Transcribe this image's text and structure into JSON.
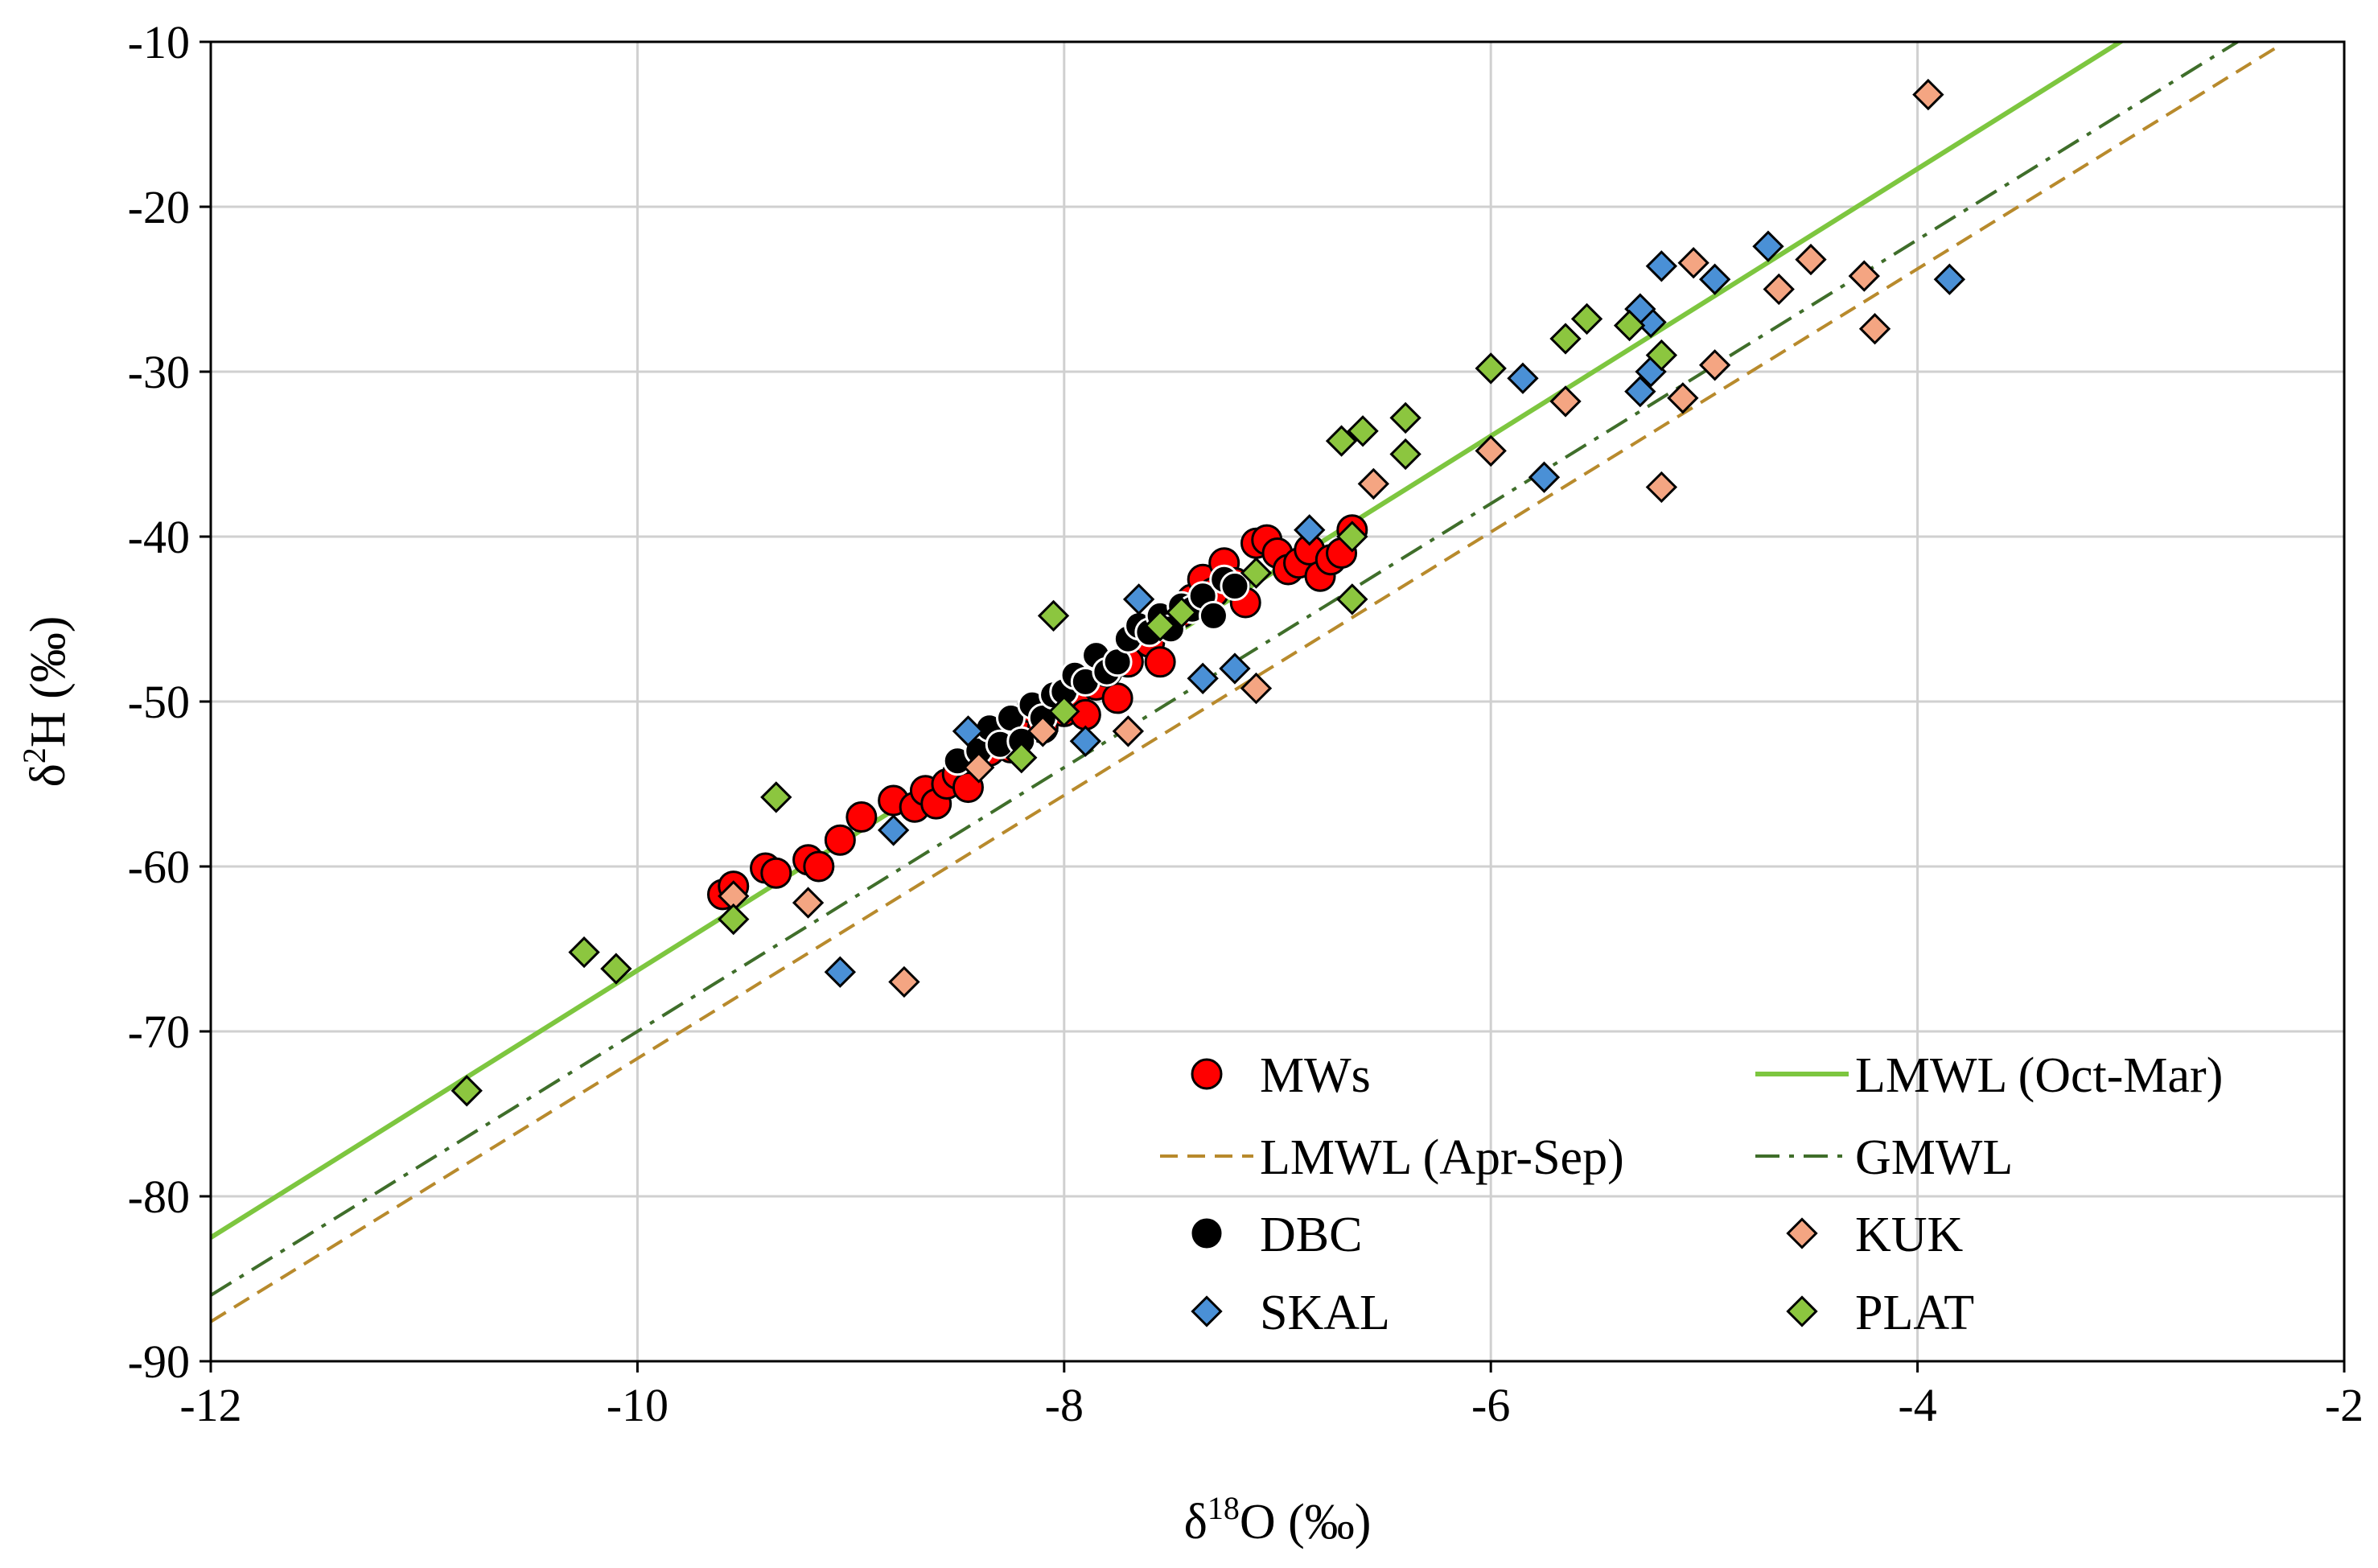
{
  "chart_data": {
    "type": "scatter",
    "xlabel": "δ18O (‰)",
    "xlabel_parts": {
      "pre": "δ",
      "sup": "18",
      "post": "O (‰)"
    },
    "ylabel": "δ2H (‰)",
    "ylabel_parts": {
      "pre": "δ",
      "sup": "2",
      "post": "H (‰)"
    },
    "xlim": [
      -12,
      -2
    ],
    "ylim": [
      -90,
      -10
    ],
    "x_ticks": [
      -12,
      -10,
      -8,
      -6,
      -4,
      -2
    ],
    "y_ticks": [
      -90,
      -80,
      -70,
      -60,
      -50,
      -40,
      -30,
      -20,
      -10
    ],
    "x_tick_labels": [
      "-12",
      "-10",
      "-8",
      "-6",
      "-4",
      "-2"
    ],
    "y_tick_labels": [
      "-90",
      "-80",
      "-70",
      "-60",
      "-50",
      "-40",
      "-30",
      "-20",
      "-10"
    ],
    "grid": true,
    "legend_position": "bottom-right",
    "legend": [
      {
        "label": "MWs",
        "key": "MWs"
      },
      {
        "label": "LMWL (Oct-Mar)",
        "key": "lmwl_oct_mar"
      },
      {
        "label": "LMWL (Apr-Sep)",
        "key": "lmwl_apr_sep"
      },
      {
        "label": "GMWL",
        "key": "gmwl"
      },
      {
        "label": "DBC",
        "key": "DBC"
      },
      {
        "label": "KUK",
        "key": "KUK"
      },
      {
        "label": "SKAL",
        "key": "SKAL"
      },
      {
        "label": "PLAT",
        "key": "PLAT"
      }
    ],
    "lines": [
      {
        "key": "lmwl_oct_mar",
        "name": "LMWL (Oct-Mar)",
        "color": "#7dc63f",
        "style": "solid",
        "points": [
          [
            -12,
            -82.5
          ],
          [
            -3,
            -9.6
          ]
        ]
      },
      {
        "key": "lmwl_apr_sep",
        "name": "LMWL (Apr-Sep)",
        "color": "#b88a2c",
        "style": "dash",
        "points": [
          [
            -12,
            -87.6
          ],
          [
            -2.3,
            -10.2
          ]
        ]
      },
      {
        "key": "gmwl",
        "name": "GMWL",
        "color": "#3f6e2a",
        "style": "dashdot",
        "points": [
          [
            -12,
            -86
          ],
          [
            -2.5,
            -10
          ]
        ]
      }
    ],
    "series": [
      {
        "key": "MWs",
        "name": "MWs",
        "marker": "circle",
        "color": "#ff0000",
        "points": [
          [
            -9.6,
            -61.7
          ],
          [
            -9.55,
            -61.2
          ],
          [
            -9.4,
            -60.1
          ],
          [
            -9.35,
            -60.4
          ],
          [
            -9.2,
            -59.6
          ],
          [
            -9.15,
            -60.0
          ],
          [
            -9.05,
            -58.4
          ],
          [
            -8.95,
            -57.0
          ],
          [
            -8.8,
            -56.0
          ],
          [
            -8.7,
            -56.4
          ],
          [
            -8.65,
            -55.4
          ],
          [
            -8.6,
            -56.2
          ],
          [
            -8.55,
            -55.0
          ],
          [
            -8.5,
            -54.4
          ],
          [
            -8.45,
            -55.2
          ],
          [
            -8.4,
            -53.6
          ],
          [
            -8.35,
            -53.0
          ],
          [
            -8.3,
            -52.2
          ],
          [
            -8.25,
            -52.8
          ],
          [
            -8.2,
            -51.4
          ],
          [
            -8.15,
            -50.4
          ],
          [
            -8.1,
            -51.6
          ],
          [
            -8.0,
            -50.6
          ],
          [
            -7.95,
            -49.6
          ],
          [
            -7.9,
            -50.8
          ],
          [
            -7.85,
            -49.0
          ],
          [
            -7.8,
            -48.2
          ],
          [
            -7.75,
            -49.8
          ],
          [
            -7.7,
            -47.6
          ],
          [
            -7.6,
            -46.4
          ],
          [
            -7.55,
            -47.6
          ],
          [
            -7.5,
            -45.2
          ],
          [
            -7.45,
            -44.6
          ],
          [
            -7.4,
            -43.8
          ],
          [
            -7.35,
            -42.6
          ],
          [
            -7.3,
            -43.4
          ],
          [
            -7.25,
            -41.6
          ],
          [
            -7.2,
            -42.8
          ],
          [
            -7.15,
            -44.0
          ],
          [
            -7.1,
            -40.4
          ],
          [
            -7.05,
            -40.2
          ],
          [
            -7.0,
            -41.0
          ],
          [
            -6.95,
            -42.0
          ],
          [
            -6.9,
            -41.6
          ],
          [
            -6.85,
            -40.8
          ],
          [
            -6.8,
            -42.4
          ],
          [
            -6.75,
            -41.4
          ],
          [
            -6.7,
            -41.0
          ],
          [
            -6.65,
            -39.6
          ]
        ]
      },
      {
        "key": "DBC",
        "name": "DBC",
        "marker": "circle",
        "color": "#000000",
        "points": [
          [
            -8.5,
            -53.6
          ],
          [
            -8.4,
            -53.0
          ],
          [
            -8.35,
            -51.6
          ],
          [
            -8.3,
            -52.6
          ],
          [
            -8.25,
            -51.0
          ],
          [
            -8.2,
            -52.4
          ],
          [
            -8.15,
            -50.2
          ],
          [
            -8.1,
            -51.0
          ],
          [
            -8.05,
            -49.6
          ],
          [
            -8.0,
            -49.4
          ],
          [
            -7.95,
            -48.4
          ],
          [
            -7.9,
            -48.8
          ],
          [
            -7.85,
            -47.2
          ],
          [
            -7.8,
            -48.2
          ],
          [
            -7.75,
            -47.6
          ],
          [
            -7.7,
            -46.2
          ],
          [
            -7.65,
            -45.4
          ],
          [
            -7.6,
            -45.8
          ],
          [
            -7.55,
            -44.8
          ],
          [
            -7.5,
            -45.6
          ],
          [
            -7.45,
            -44.2
          ],
          [
            -7.4,
            -44.4
          ],
          [
            -7.35,
            -43.6
          ],
          [
            -7.3,
            -44.8
          ],
          [
            -7.25,
            -42.6
          ],
          [
            -7.2,
            -43.0
          ]
        ]
      },
      {
        "key": "KUK",
        "name": "KUK",
        "marker": "diamond",
        "color": "#f4a582",
        "points": [
          [
            -9.55,
            -61.8
          ],
          [
            -9.2,
            -62.2
          ],
          [
            -8.75,
            -67.0
          ],
          [
            -8.4,
            -54.0
          ],
          [
            -8.1,
            -51.8
          ],
          [
            -7.7,
            -51.8
          ],
          [
            -7.1,
            -49.2
          ],
          [
            -6.55,
            -36.8
          ],
          [
            -6.0,
            -34.8
          ],
          [
            -5.65,
            -31.8
          ],
          [
            -5.2,
            -37.0
          ],
          [
            -5.1,
            -31.6
          ],
          [
            -5.05,
            -23.4
          ],
          [
            -4.95,
            -29.6
          ],
          [
            -4.65,
            -25.0
          ],
          [
            -4.5,
            -23.2
          ],
          [
            -4.25,
            -24.2
          ],
          [
            -4.2,
            -27.4
          ],
          [
            -3.95,
            -13.2
          ]
        ]
      },
      {
        "key": "SKAL",
        "name": "SKAL",
        "marker": "diamond",
        "color": "#4a90d6",
        "points": [
          [
            -9.05,
            -66.4
          ],
          [
            -8.8,
            -57.8
          ],
          [
            -8.45,
            -51.8
          ],
          [
            -7.9,
            -52.4
          ],
          [
            -7.65,
            -43.8
          ],
          [
            -7.35,
            -48.6
          ],
          [
            -7.2,
            -48.0
          ],
          [
            -6.85,
            -39.6
          ],
          [
            -5.85,
            -30.4
          ],
          [
            -5.75,
            -36.4
          ],
          [
            -5.3,
            -31.2
          ],
          [
            -5.25,
            -30.0
          ],
          [
            -5.25,
            -27.0
          ],
          [
            -5.3,
            -26.2
          ],
          [
            -5.2,
            -23.6
          ],
          [
            -4.95,
            -24.4
          ],
          [
            -4.7,
            -22.4
          ],
          [
            -3.85,
            -24.4
          ]
        ]
      },
      {
        "key": "PLAT",
        "name": "PLAT",
        "marker": "diamond",
        "color": "#8cc63f",
        "points": [
          [
            -10.8,
            -73.6
          ],
          [
            -10.25,
            -65.2
          ],
          [
            -10.1,
            -66.2
          ],
          [
            -9.55,
            -63.2
          ],
          [
            -9.35,
            -55.8
          ],
          [
            -8.2,
            -53.4
          ],
          [
            -8.05,
            -44.8
          ],
          [
            -8.0,
            -50.6
          ],
          [
            -7.55,
            -45.4
          ],
          [
            -7.45,
            -44.6
          ],
          [
            -7.1,
            -42.2
          ],
          [
            -6.7,
            -34.2
          ],
          [
            -6.65,
            -43.8
          ],
          [
            -6.6,
            -33.6
          ],
          [
            -6.4,
            -32.8
          ],
          [
            -6.4,
            -35.0
          ],
          [
            -6.65,
            -40.0
          ],
          [
            -6.0,
            -29.8
          ],
          [
            -5.65,
            -28.0
          ],
          [
            -5.55,
            -26.8
          ],
          [
            -5.35,
            -27.2
          ],
          [
            -5.2,
            -29.0
          ]
        ]
      }
    ]
  }
}
